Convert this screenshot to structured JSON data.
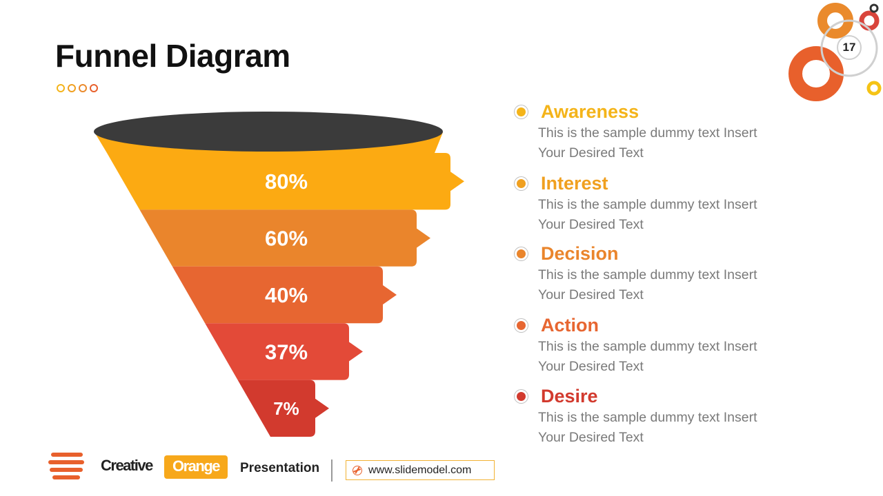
{
  "slide": {
    "title": "Funnel Diagram",
    "page_number": "17"
  },
  "colors": {
    "rim": "#3b3b3b",
    "title_dots": [
      "#f4b41a",
      "#f0a020",
      "#ea8a2c",
      "#e8602c"
    ],
    "deco_rings": [
      "#ea8a2c",
      "#e8602c",
      "#d9443b",
      "#f5c315",
      "#d0d0d0"
    ]
  },
  "funnel": {
    "levels": [
      {
        "label": "80%",
        "value": 80,
        "color": "#fcaa12"
      },
      {
        "label": "60%",
        "value": 60,
        "color": "#ea852c"
      },
      {
        "label": "40%",
        "value": 40,
        "color": "#e76631"
      },
      {
        "label": "37%",
        "value": 37,
        "color": "#e34a38"
      },
      {
        "label": "7%",
        "value": 7,
        "color": "#d23a2e"
      }
    ]
  },
  "stages": [
    {
      "name": "Awareness",
      "color": "#f4b41a",
      "description": "This is the sample  dummy  text Insert Your Desired Text"
    },
    {
      "name": "Interest",
      "color": "#f0a020",
      "description": "This is the sample  dummy  text Insert Your Desired Text"
    },
    {
      "name": "Decision",
      "color": "#ea852c",
      "description": "This is the sample  dummy  text Insert Your Desired Text"
    },
    {
      "name": "Action",
      "color": "#e76631",
      "description": "This is the sample  dummy  text Insert Your Desired Text"
    },
    {
      "name": "Desire",
      "color": "#d23a2e",
      "description": "This is the sample  dummy  text Insert Your Desired Text"
    }
  ],
  "footer": {
    "brand_part1": "Creative",
    "brand_part2": "Orange",
    "brand_part3": "Presentation",
    "url": "www.slidemodel.com"
  }
}
